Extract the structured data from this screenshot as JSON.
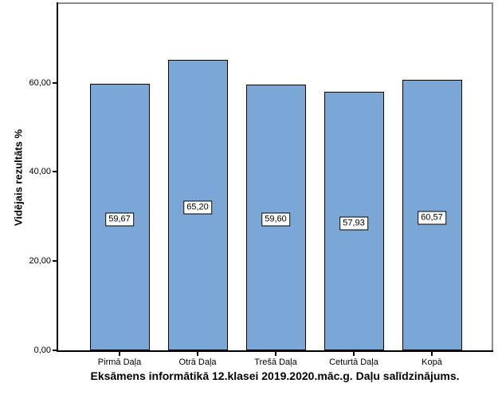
{
  "chart_data": {
    "type": "bar",
    "title": "Eksāmens informātikā 12.klasei 2019.2020.māc.g. Daļu salīdzinājums.",
    "ylabel": "Vidējais rezultāts %",
    "xlabel": "",
    "categories": [
      "Pirmā Daļa",
      "Otrā Daļa",
      "Trešā Daļa",
      "Ceturtā Daļa",
      "Kopā"
    ],
    "values": [
      59.67,
      65.2,
      59.6,
      57.93,
      60.57
    ],
    "value_labels": [
      "59,67",
      "65,20",
      "59,60",
      "57,93",
      "60,57"
    ],
    "ylim": [
      0,
      78
    ],
    "yticks": {
      "values": [
        0,
        20,
        40,
        60
      ],
      "labels": [
        "0,00",
        "20,00",
        "40,00",
        "60,00"
      ]
    },
    "grid": false,
    "legend": "none",
    "colors": {
      "bar_fill": "#7BA7D7",
      "bar_border": "#000000",
      "frame": "#8C8C8C",
      "axis": "#000000",
      "label_box_bg": "#FFFFFF"
    }
  }
}
